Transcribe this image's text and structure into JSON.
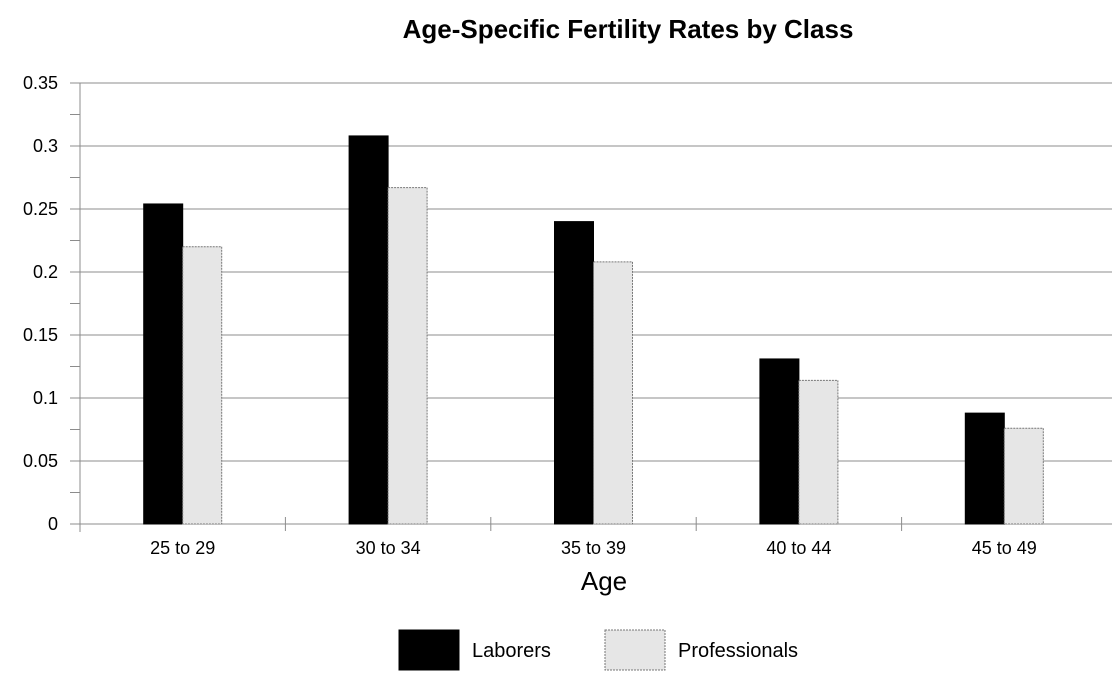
{
  "chart_data": {
    "type": "bar",
    "title": "Age-Specific Fertility Rates by Class",
    "xlabel": "Age",
    "ylabel": "",
    "categories": [
      "25 to 29",
      "30 to 34",
      "35 to 39",
      "40 to 44",
      "45 to 49"
    ],
    "series": [
      {
        "name": "Laborers",
        "values": [
          0.254,
          0.308,
          0.24,
          0.131,
          0.088
        ],
        "color": "#000000"
      },
      {
        "name": "Professionals",
        "values": [
          0.22,
          0.267,
          0.208,
          0.114,
          0.076
        ],
        "color": "#e6e6e6"
      }
    ],
    "ylim": [
      0,
      0.35
    ],
    "yticks": [
      0,
      0.05,
      0.1,
      0.15,
      0.2,
      0.25,
      0.3,
      0.35
    ],
    "ytick_labels": [
      "0",
      "0.05",
      "0.1",
      "0.15",
      "0.2",
      "0.25",
      "0.3",
      "0.35"
    ],
    "grid": true,
    "legend_position": "bottom-center"
  }
}
